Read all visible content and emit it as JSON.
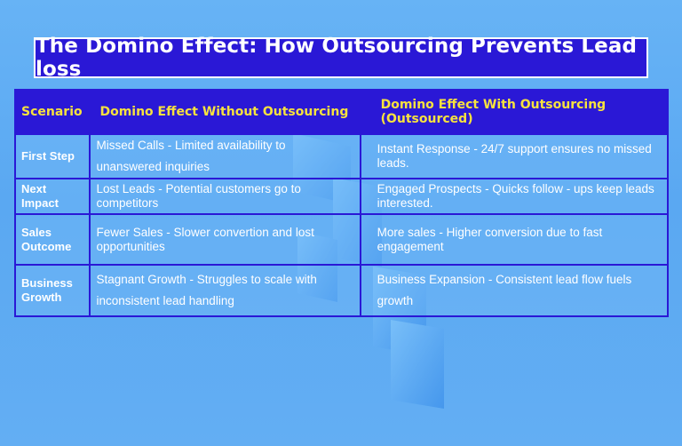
{
  "title": "The Domino Effect: How Outsourcing Prevents Lead loss",
  "colors": {
    "header_bg": "#2a18d6",
    "header_text": "#f7e23e",
    "background": "#5aa8f2"
  },
  "table": {
    "headers": [
      "Scenario",
      "Domino Effect Without Outsourcing",
      "Domino Effect With Outsourcing (Outsourced)"
    ],
    "rows": [
      {
        "scenario": "First Step",
        "without": "Missed Calls - Limited availability to unanswered inquiries",
        "with": "Instant Response - 24/7 support ensures no missed leads."
      },
      {
        "scenario": "Next Impact",
        "without": "Lost Leads - Potential customers  go to competitors",
        "with": "Engaged Prospects - Quicks follow - ups keep leads interested."
      },
      {
        "scenario": "Sales Outcome",
        "without": "Fewer Sales - Slower convertion and lost opportunities",
        "with": "More sales - Higher conversion due to fast engagement"
      },
      {
        "scenario": "Business Growth",
        "without": "Stagnant Growth - Struggles to scale with inconsistent lead handling",
        "with": "Business Expansion - Consistent lead flow fuels growth"
      }
    ]
  }
}
